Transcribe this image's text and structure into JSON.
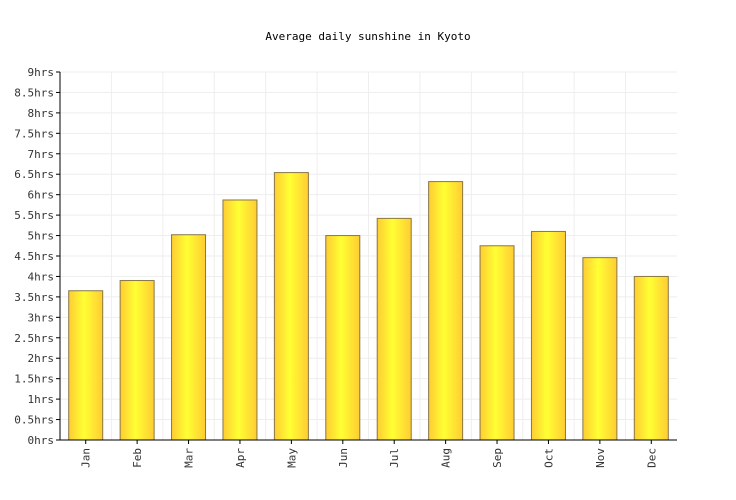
{
  "chart_data": {
    "type": "bar",
    "title": "Average daily sunshine in Kyoto",
    "xlabel": "",
    "ylabel": "",
    "categories": [
      "Jan",
      "Feb",
      "Mar",
      "Apr",
      "May",
      "Jun",
      "Jul",
      "Aug",
      "Sep",
      "Oct",
      "Nov",
      "Dec"
    ],
    "values": [
      3.65,
      3.9,
      5.02,
      5.87,
      6.54,
      5.0,
      5.42,
      6.32,
      4.75,
      5.1,
      4.46,
      4.0
    ],
    "ylim": [
      0,
      9
    ],
    "yticks": [
      "0hrs",
      "0.5hrs",
      "1hrs",
      "1.5hrs",
      "2hrs",
      "2.5hrs",
      "3hrs",
      "3.5hrs",
      "4hrs",
      "4.5hrs",
      "5hrs",
      "5.5hrs",
      "6hrs",
      "6.5hrs",
      "7hrs",
      "7.5hrs",
      "8hrs",
      "8.5hrs",
      "9hrs"
    ],
    "grid": true,
    "legend": "none",
    "colors": {
      "bar_light": "#ffff33",
      "bar_dark": "#ffcc33",
      "bar_stroke": "#887744",
      "grid": "#eeeeee",
      "axis": "#000000"
    }
  }
}
